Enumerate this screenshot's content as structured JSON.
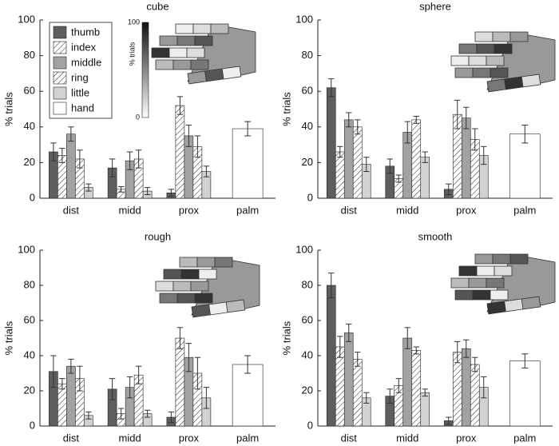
{
  "chart_data": [
    {
      "type": "bar",
      "title": "cube",
      "y_label": "% trials",
      "categories": [
        "dist",
        "midd",
        "prox",
        "palm"
      ],
      "ylim": [
        0,
        100
      ],
      "yticks": [
        0,
        20,
        40,
        60,
        80,
        100
      ],
      "legend": true,
      "colorbar": {
        "label": "% trials",
        "ticks": [
          0,
          100
        ]
      },
      "series": [
        {
          "name": "thumb",
          "color": "#5e5e5e",
          "hatch": false,
          "values": [
            26,
            17,
            3,
            null
          ],
          "errors": [
            5,
            5,
            2,
            null
          ]
        },
        {
          "name": "index",
          "color": "#ffffff",
          "hatch": true,
          "values": [
            24,
            5,
            52,
            null
          ],
          "errors": [
            4,
            1.5,
            5,
            null
          ]
        },
        {
          "name": "middle",
          "color": "#a2a2a2",
          "hatch": false,
          "values": [
            36,
            21,
            35,
            null
          ],
          "errors": [
            4,
            5,
            6,
            null
          ]
        },
        {
          "name": "ring",
          "color": "#ffffff",
          "hatch": true,
          "values": [
            22,
            22,
            29,
            null
          ],
          "errors": [
            5,
            5,
            6,
            null
          ]
        },
        {
          "name": "little",
          "color": "#d2d2d2",
          "hatch": false,
          "values": [
            6,
            4,
            15,
            null
          ],
          "errors": [
            2,
            2,
            3,
            null
          ]
        },
        {
          "name": "hand",
          "color": "#ffffff",
          "hatch": false,
          "values": [
            null,
            null,
            null,
            39
          ],
          "errors": [
            null,
            null,
            null,
            4
          ]
        }
      ]
    },
    {
      "type": "bar",
      "title": "sphere",
      "y_label": "% trials",
      "categories": [
        "dist",
        "midd",
        "prox",
        "palm"
      ],
      "ylim": [
        0,
        100
      ],
      "yticks": [
        0,
        20,
        40,
        60,
        80,
        100
      ],
      "legend": false,
      "series": [
        {
          "color": "#5e5e5e",
          "hatch": false,
          "values": [
            62,
            18,
            5,
            null
          ],
          "errors": [
            5,
            4,
            3,
            null
          ]
        },
        {
          "color": "#ffffff",
          "hatch": true,
          "values": [
            26,
            11,
            47,
            null
          ],
          "errors": [
            3,
            2,
            8,
            null
          ]
        },
        {
          "color": "#a2a2a2",
          "hatch": false,
          "values": [
            44,
            37,
            45,
            null
          ],
          "errors": [
            4,
            6,
            6,
            null
          ]
        },
        {
          "color": "#ffffff",
          "hatch": true,
          "values": [
            40,
            44,
            33,
            null
          ],
          "errors": [
            4,
            2,
            6,
            null
          ]
        },
        {
          "color": "#d2d2d2",
          "hatch": false,
          "values": [
            19,
            23,
            24,
            null
          ],
          "errors": [
            4,
            3,
            5,
            null
          ]
        },
        {
          "color": "#ffffff",
          "hatch": false,
          "values": [
            null,
            null,
            null,
            36
          ],
          "errors": [
            null,
            null,
            null,
            5
          ]
        }
      ]
    },
    {
      "type": "bar",
      "title": "rough",
      "y_label": "% trials",
      "categories": [
        "dist",
        "midd",
        "prox",
        "palm"
      ],
      "ylim": [
        0,
        100
      ],
      "yticks": [
        0,
        20,
        40,
        60,
        80,
        100
      ],
      "legend": false,
      "series": [
        {
          "color": "#5e5e5e",
          "hatch": false,
          "values": [
            31,
            21,
            5,
            null
          ],
          "errors": [
            9,
            6,
            3,
            null
          ]
        },
        {
          "color": "#ffffff",
          "hatch": true,
          "values": [
            24,
            7,
            50,
            null
          ],
          "errors": [
            3,
            3,
            6,
            null
          ]
        },
        {
          "color": "#a2a2a2",
          "hatch": false,
          "values": [
            34,
            22,
            39,
            null
          ],
          "errors": [
            4,
            6,
            8,
            null
          ]
        },
        {
          "color": "#ffffff",
          "hatch": true,
          "values": [
            27,
            29,
            30,
            null
          ],
          "errors": [
            7,
            5,
            9,
            null
          ]
        },
        {
          "color": "#d2d2d2",
          "hatch": false,
          "values": [
            6,
            7,
            16,
            null
          ],
          "errors": [
            2,
            2,
            6,
            null
          ]
        },
        {
          "color": "#ffffff",
          "hatch": false,
          "values": [
            null,
            null,
            null,
            35
          ],
          "errors": [
            null,
            null,
            null,
            5
          ]
        }
      ]
    },
    {
      "type": "bar",
      "title": "smooth",
      "y_label": "% trials",
      "categories": [
        "dist",
        "midd",
        "prox",
        "palm"
      ],
      "ylim": [
        0,
        100
      ],
      "yticks": [
        0,
        20,
        40,
        60,
        80,
        100
      ],
      "legend": false,
      "series": [
        {
          "color": "#5e5e5e",
          "hatch": false,
          "values": [
            80,
            17,
            3,
            null
          ],
          "errors": [
            7,
            4,
            2,
            null
          ]
        },
        {
          "color": "#ffffff",
          "hatch": true,
          "values": [
            45,
            23,
            42,
            null
          ],
          "errors": [
            6,
            4,
            6,
            null
          ]
        },
        {
          "color": "#a2a2a2",
          "hatch": false,
          "values": [
            53,
            50,
            44,
            null
          ],
          "errors": [
            5,
            6,
            5,
            null
          ]
        },
        {
          "color": "#ffffff",
          "hatch": true,
          "values": [
            38,
            43,
            35,
            null
          ],
          "errors": [
            4,
            2,
            4,
            null
          ]
        },
        {
          "color": "#d2d2d2",
          "hatch": false,
          "values": [
            16,
            19,
            22,
            null
          ],
          "errors": [
            3,
            2,
            6,
            null
          ]
        },
        {
          "color": "#ffffff",
          "hatch": false,
          "values": [
            null,
            null,
            null,
            37
          ],
          "errors": [
            null,
            null,
            null,
            4
          ]
        }
      ]
    }
  ]
}
